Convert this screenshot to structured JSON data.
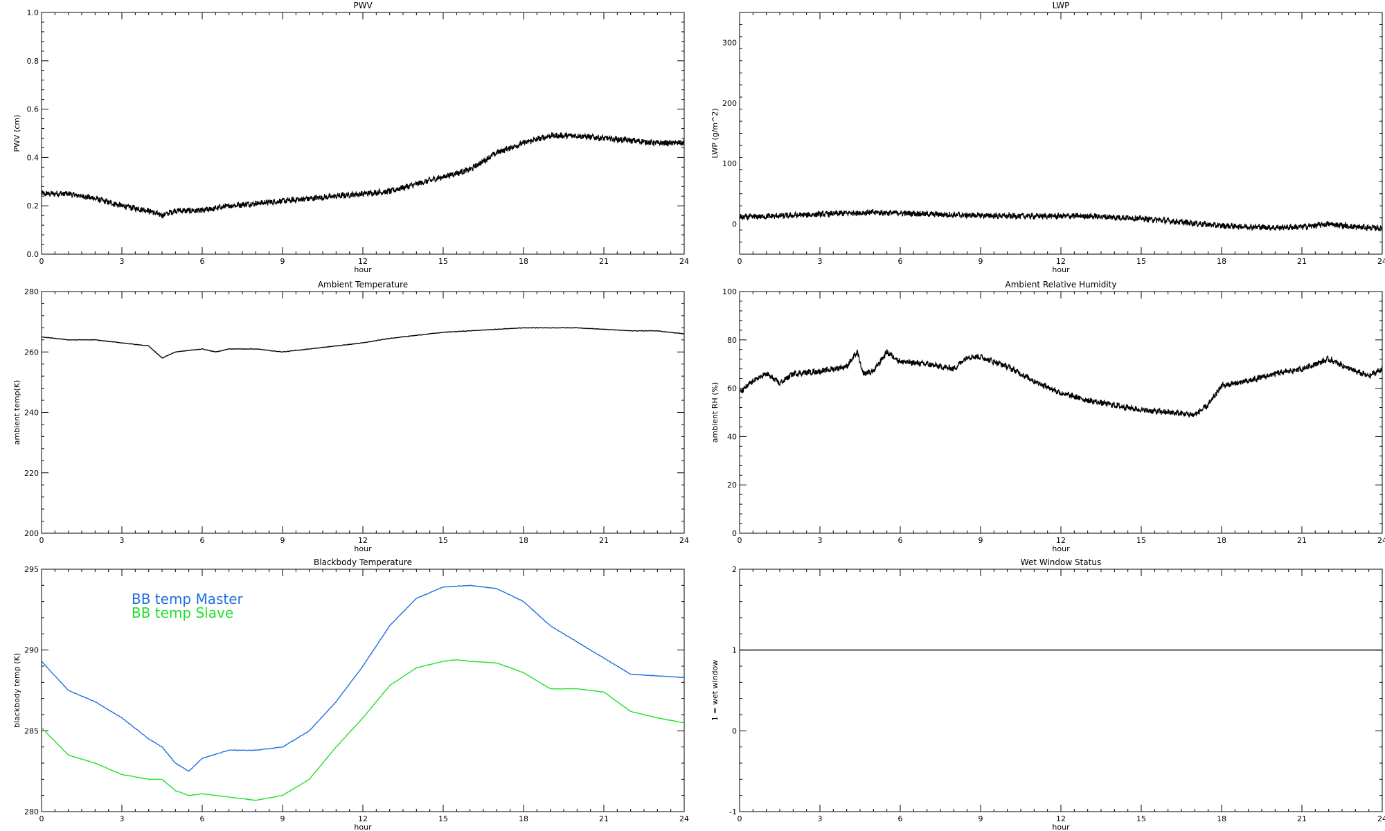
{
  "chart_data": [
    {
      "type": "line",
      "title": "PWV",
      "xlabel": "hour",
      "ylabel": "PWV (cm)",
      "xlim": [
        0,
        24
      ],
      "ylim": [
        0.0,
        1.0
      ],
      "xticks": [
        0,
        3,
        6,
        9,
        12,
        15,
        18,
        21,
        24
      ],
      "yticks": [
        0.0,
        0.2,
        0.4,
        0.6,
        0.8,
        1.0
      ],
      "ytick_labels": [
        "0.0",
        "0.2",
        "0.4",
        "0.6",
        "0.8",
        "1.0"
      ],
      "series": [
        {
          "color": "#000000",
          "style": "noisy",
          "x": [
            0,
            1,
            2,
            3,
            4,
            4.5,
            5,
            6,
            7,
            8,
            9,
            10,
            11,
            12,
            13,
            14,
            15,
            16,
            17,
            18,
            19,
            20,
            21,
            22,
            23,
            24
          ],
          "y": [
            0.25,
            0.25,
            0.23,
            0.2,
            0.18,
            0.16,
            0.18,
            0.18,
            0.2,
            0.21,
            0.22,
            0.23,
            0.24,
            0.25,
            0.26,
            0.29,
            0.32,
            0.35,
            0.42,
            0.46,
            0.49,
            0.49,
            0.48,
            0.47,
            0.46,
            0.46
          ]
        }
      ]
    },
    {
      "type": "line",
      "title": "LWP",
      "xlabel": "hour",
      "ylabel": "LWP (g/m^2)",
      "xlim": [
        0,
        24
      ],
      "ylim": [
        -50,
        350
      ],
      "xticks": [
        0,
        3,
        6,
        9,
        12,
        15,
        18,
        21,
        24
      ],
      "yticks": [
        0,
        100,
        200,
        300
      ],
      "ytick_labels": [
        "0",
        "100",
        "200",
        "300"
      ],
      "series": [
        {
          "color": "#000000",
          "style": "noisy",
          "x": [
            0,
            2,
            4,
            5,
            6,
            8,
            10,
            12,
            13,
            15,
            16,
            17,
            18,
            20,
            21,
            22,
            23,
            24
          ],
          "y": [
            11,
            14,
            18,
            19,
            18,
            15,
            13,
            13,
            13,
            9,
            5,
            1,
            -3,
            -6,
            -5,
            0,
            -5,
            -7
          ]
        }
      ]
    },
    {
      "type": "line",
      "title": "Ambient Temperature",
      "xlabel": "hour",
      "ylabel": "ambient temp(K)",
      "xlim": [
        0,
        24
      ],
      "ylim": [
        200,
        280
      ],
      "xticks": [
        0,
        3,
        6,
        9,
        12,
        15,
        18,
        21,
        24
      ],
      "yticks": [
        200,
        220,
        240,
        260,
        280
      ],
      "ytick_labels": [
        "200",
        "220",
        "240",
        "260",
        "280"
      ],
      "series": [
        {
          "color": "#000000",
          "style": "smooth",
          "x": [
            0,
            1,
            2,
            3,
            4,
            4.5,
            5,
            6,
            6.5,
            7,
            8,
            9,
            10,
            11,
            12,
            13,
            14,
            15,
            16,
            17,
            18,
            19,
            20,
            21,
            22,
            23,
            24
          ],
          "y": [
            265,
            264,
            264,
            263,
            262,
            258,
            260,
            261,
            260,
            261,
            261,
            260,
            261,
            262,
            263,
            264.5,
            265.5,
            266.5,
            267,
            267.5,
            268,
            268,
            268,
            267.5,
            267,
            267,
            266
          ]
        }
      ]
    },
    {
      "type": "line",
      "title": "Ambient Relative Humidity",
      "xlabel": "hour",
      "ylabel": "ambient RH (%)",
      "xlim": [
        0,
        24
      ],
      "ylim": [
        0,
        100
      ],
      "xticks": [
        0,
        3,
        6,
        9,
        12,
        15,
        18,
        21,
        24
      ],
      "yticks": [
        0,
        20,
        40,
        60,
        80,
        100
      ],
      "ytick_labels": [
        "0",
        "20",
        "40",
        "60",
        "80",
        "100"
      ],
      "series": [
        {
          "color": "#000000",
          "style": "noisy",
          "x": [
            0,
            0.5,
            1,
            1.5,
            2,
            3,
            4,
            4.4,
            4.6,
            5,
            5.5,
            6,
            7,
            8,
            8.5,
            9,
            10,
            11,
            12,
            13,
            14,
            15,
            16,
            17,
            17.5,
            18,
            19,
            20,
            21,
            22,
            23,
            23.5,
            24
          ],
          "y": [
            58,
            63,
            66,
            62,
            66,
            67,
            69,
            75,
            66,
            67,
            75,
            71,
            70,
            68,
            73,
            73,
            69,
            63,
            58,
            55,
            53,
            51,
            50,
            49,
            53,
            61,
            63,
            66,
            68,
            72,
            67,
            65,
            68
          ]
        }
      ]
    },
    {
      "type": "line",
      "title": "Blackbody Temperature",
      "xlabel": "hour",
      "ylabel": "blackbody temp (K)",
      "xlim": [
        0,
        24
      ],
      "ylim": [
        280,
        295
      ],
      "xticks": [
        0,
        3,
        6,
        9,
        12,
        15,
        18,
        21,
        24
      ],
      "yticks": [
        280,
        285,
        290,
        295
      ],
      "ytick_labels": [
        "280",
        "285",
        "290",
        "295"
      ],
      "legend_position": "top-left",
      "series": [
        {
          "name": "BB temp Master",
          "color": "#1f6fe0",
          "style": "smooth",
          "x": [
            0,
            1,
            2,
            3,
            4,
            4.5,
            5,
            5.5,
            6,
            7,
            8,
            9,
            10,
            11,
            12,
            13,
            14,
            15,
            16,
            17,
            18,
            19,
            20,
            21,
            22,
            23,
            24
          ],
          "y": [
            289.3,
            287.5,
            286.8,
            285.8,
            284.5,
            284.0,
            283.0,
            282.5,
            283.3,
            283.8,
            283.8,
            284.0,
            285.0,
            286.8,
            289.0,
            291.5,
            293.2,
            293.9,
            294.0,
            293.8,
            293.0,
            291.5,
            290.5,
            289.5,
            288.5,
            288.4,
            288.3
          ]
        },
        {
          "name": "BB temp Slave",
          "color": "#22e02a",
          "style": "smooth",
          "x": [
            0,
            1,
            2,
            3,
            4,
            4.5,
            5,
            5.5,
            6,
            7,
            8,
            9,
            10,
            11,
            12,
            13,
            14,
            15,
            15.5,
            16,
            17,
            18,
            19,
            20,
            21,
            22,
            23,
            24
          ],
          "y": [
            285.2,
            283.5,
            283.0,
            282.3,
            282.0,
            282.0,
            281.3,
            281.0,
            281.1,
            280.9,
            280.7,
            281.0,
            282.0,
            284.0,
            285.8,
            287.8,
            288.9,
            289.3,
            289.4,
            289.3,
            289.2,
            288.6,
            287.6,
            287.6,
            287.4,
            286.2,
            285.8,
            285.5
          ]
        }
      ]
    },
    {
      "type": "line",
      "title": "Wet Window Status",
      "xlabel": "hour",
      "ylabel": "1 = wet window",
      "xlim": [
        0,
        24
      ],
      "ylim": [
        -1,
        2
      ],
      "xticks": [
        0,
        3,
        6,
        9,
        12,
        15,
        18,
        21,
        24
      ],
      "yticks": [
        -1,
        0,
        1,
        2
      ],
      "ytick_labels": [
        "-1",
        "0",
        "1",
        "2"
      ],
      "series": [
        {
          "color": "#000000",
          "style": "smooth",
          "x": [
            0,
            24
          ],
          "y": [
            1,
            1
          ]
        }
      ]
    }
  ]
}
